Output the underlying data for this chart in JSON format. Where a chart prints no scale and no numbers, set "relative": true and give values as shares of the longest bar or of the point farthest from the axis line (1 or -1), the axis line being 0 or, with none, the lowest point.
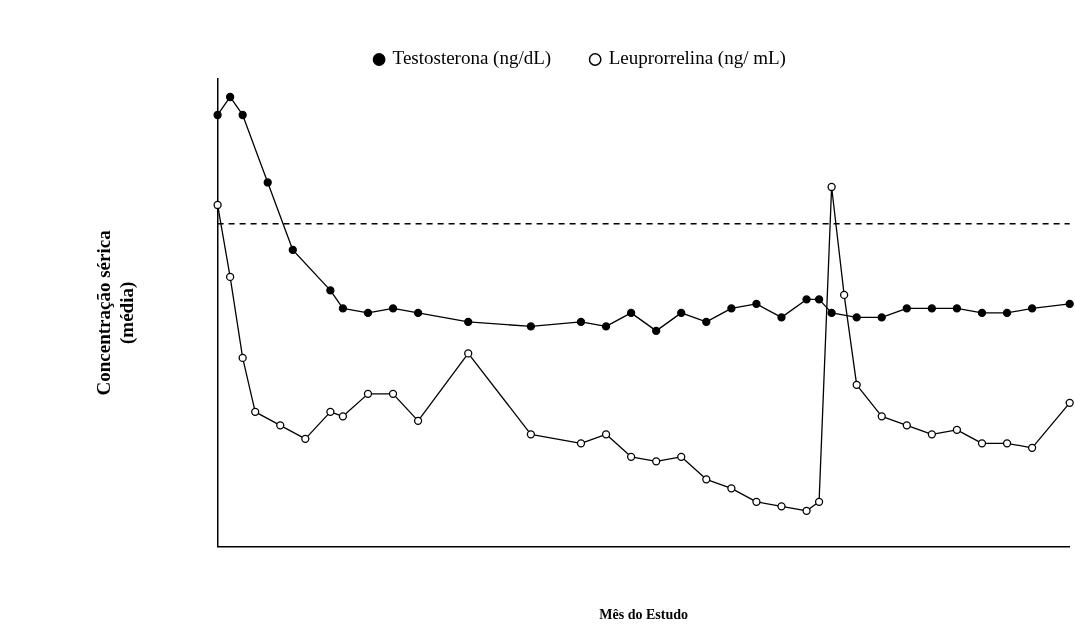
{
  "chart_data": {
    "type": "line",
    "relative": true,
    "xlabel": "Mês do Estudo",
    "ylabel": "Concentração sérica\n(média)",
    "legend": "top",
    "grid": false,
    "marker": "circle",
    "line_style": "solid",
    "categories": [
      null,
      null,
      null,
      null,
      null,
      null,
      null,
      null,
      null,
      null,
      null,
      null,
      null,
      null,
      null,
      null,
      null,
      null,
      null,
      null,
      null,
      null,
      null,
      null,
      null,
      null,
      null,
      null,
      null,
      null,
      null,
      null,
      null,
      null,
      null,
      null,
      null,
      null,
      null,
      null,
      null,
      null,
      null,
      null,
      null,
      null,
      null,
      null,
      null,
      null,
      null,
      null,
      null,
      null,
      null,
      null,
      null,
      null,
      null,
      null,
      null,
      null,
      null,
      null,
      null,
      null,
      null,
      null,
      null
    ],
    "ref_lines": [
      {
        "axis": "y",
        "value": 0.718,
        "line_style": "dashed",
        "color": "#000000"
      }
    ],
    "series": [
      {
        "name": "Testosterona (ng/dL)",
        "color": "#000000",
        "values": [
          0.96,
          1,
          0.96,
          null,
          0.81,
          null,
          0.66,
          null,
          null,
          0.57,
          0.53,
          null,
          0.52,
          null,
          0.53,
          null,
          0.52,
          null,
          null,
          null,
          0.5,
          null,
          null,
          null,
          null,
          0.49,
          null,
          null,
          null,
          0.5,
          null,
          0.49,
          null,
          0.52,
          null,
          0.48,
          null,
          0.52,
          null,
          0.5,
          null,
          0.53,
          null,
          0.54,
          null,
          0.51,
          null,
          0.55,
          0.55,
          0.52,
          null,
          0.51,
          null,
          0.51,
          null,
          0.53,
          null,
          0.53,
          null,
          0.53,
          null,
          0.52,
          null,
          0.52,
          null,
          0.53,
          null,
          null,
          0.54
        ]
      },
      {
        "name": "Leuprorrelina (ng/ mL)",
        "color": "#000000",
        "values": [
          0.76,
          0.6,
          0.42,
          0.3,
          null,
          0.27,
          null,
          0.24,
          null,
          0.3,
          0.29,
          null,
          0.34,
          null,
          0.34,
          null,
          0.28,
          null,
          null,
          null,
          0.43,
          null,
          null,
          null,
          null,
          0.25,
          null,
          null,
          null,
          0.23,
          null,
          0.25,
          null,
          0.2,
          null,
          0.19,
          null,
          0.2,
          null,
          0.15,
          null,
          0.13,
          null,
          0.1,
          null,
          0.09,
          null,
          0.08,
          0.1,
          0.8,
          0.56,
          0.36,
          null,
          0.29,
          null,
          0.27,
          null,
          0.25,
          null,
          0.26,
          null,
          0.23,
          null,
          0.23,
          null,
          0.22,
          null,
          null,
          0.32
        ]
      }
    ]
  }
}
